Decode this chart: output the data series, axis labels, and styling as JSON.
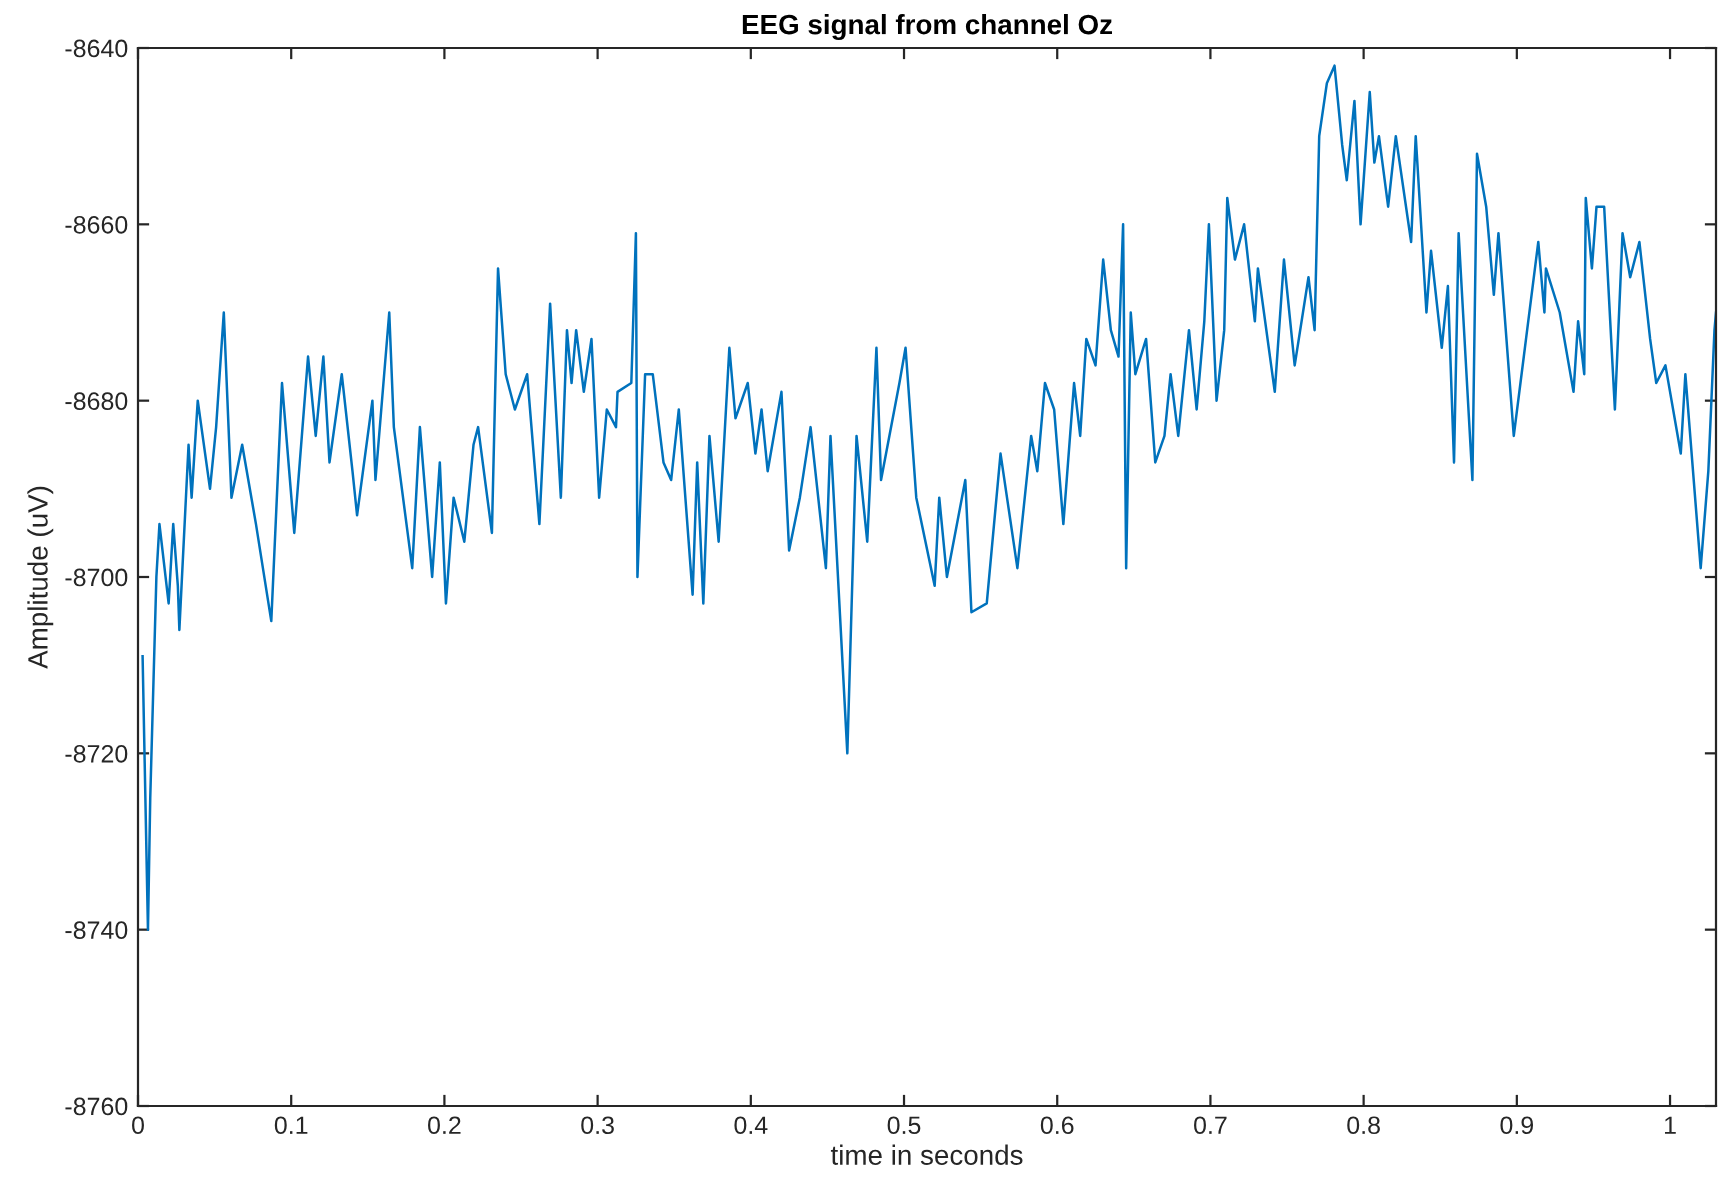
{
  "chart_data": {
    "type": "line",
    "title": "EEG signal from channel Oz",
    "xlabel": "time in seconds",
    "ylabel": "Amplitude (uV)",
    "xlim": [
      0,
      1.03
    ],
    "xticks": [
      0,
      0.1,
      0.2,
      0.3,
      0.4,
      0.5,
      0.6,
      0.7,
      0.8,
      0.9,
      1
    ],
    "ylim": [
      -8760,
      -8640
    ],
    "yticks": [
      -8760,
      -8740,
      -8720,
      -8700,
      -8680,
      -8660,
      -8640
    ],
    "grid": false,
    "marker": "none",
    "line_style": "solid",
    "series": [
      {
        "color": "#0072bd",
        "x": [
          0.003,
          0.0065,
          0.008,
          0.012,
          0.014,
          0.02,
          0.023,
          0.026,
          0.027,
          0.033,
          0.035,
          0.039,
          0.047,
          0.051,
          0.056,
          0.061,
          0.068,
          0.077,
          0.087,
          0.094,
          0.102,
          0.111,
          0.116,
          0.121,
          0.125,
          0.133,
          0.14,
          0.143,
          0.153,
          0.155,
          0.164,
          0.167,
          0.179,
          0.184,
          0.192,
          0.197,
          0.201,
          0.206,
          0.213,
          0.219,
          0.222,
          0.231,
          0.235,
          0.24,
          0.246,
          0.254,
          0.262,
          0.269,
          0.276,
          0.28,
          0.283,
          0.286,
          0.291,
          0.296,
          0.301,
          0.306,
          0.312,
          0.313,
          0.322,
          0.325,
          0.326,
          0.331,
          0.336,
          0.343,
          0.348,
          0.353,
          0.362,
          0.365,
          0.369,
          0.373,
          0.379,
          0.386,
          0.39,
          0.398,
          0.403,
          0.407,
          0.411,
          0.42,
          0.425,
          0.432,
          0.439,
          0.449,
          0.452,
          0.463,
          0.469,
          0.476,
          0.482,
          0.485,
          0.497,
          0.501,
          0.508,
          0.52,
          0.523,
          0.528,
          0.54,
          0.544,
          0.554,
          0.563,
          0.574,
          0.583,
          0.587,
          0.592,
          0.598,
          0.604,
          0.611,
          0.615,
          0.619,
          0.625,
          0.63,
          0.635,
          0.64,
          0.643,
          0.645,
          0.648,
          0.651,
          0.658,
          0.664,
          0.67,
          0.674,
          0.679,
          0.686,
          0.691,
          0.696,
          0.699,
          0.704,
          0.709,
          0.711,
          0.716,
          0.722,
          0.729,
          0.731,
          0.742,
          0.748,
          0.755,
          0.764,
          0.768,
          0.771,
          0.776,
          0.781,
          0.786,
          0.789,
          0.794,
          0.798,
          0.804,
          0.807,
          0.81,
          0.816,
          0.821,
          0.831,
          0.834,
          0.841,
          0.844,
          0.851,
          0.855,
          0.859,
          0.862,
          0.871,
          0.874,
          0.88,
          0.885,
          0.888,
          0.898,
          0.906,
          0.914,
          0.918,
          0.919,
          0.928,
          0.937,
          0.94,
          0.944,
          0.945,
          0.949,
          0.952,
          0.957,
          0.964,
          0.969,
          0.974,
          0.98,
          0.987,
          0.991,
          0.997,
          1.007,
          1.01,
          1.02,
          1.025,
          1.029,
          1.03
        ],
        "values": [
          -8709,
          -8740,
          -8725,
          -8700,
          -8694,
          -8703,
          -8694,
          -8701,
          -8706,
          -8685,
          -8691,
          -8680,
          -8690,
          -8683,
          -8670,
          -8691,
          -8685,
          -8694,
          -8705,
          -8678,
          -8695,
          -8675,
          -8684,
          -8675,
          -8687,
          -8677,
          -8688,
          -8693,
          -8680,
          -8689,
          -8670,
          -8683,
          -8699,
          -8683,
          -8700,
          -8687,
          -8703,
          -8691,
          -8696,
          -8685,
          -8683,
          -8695,
          -8665,
          -8677,
          -8681,
          -8677,
          -8694,
          -8669,
          -8691,
          -8672,
          -8678,
          -8672,
          -8679,
          -8673,
          -8691,
          -8681,
          -8683,
          -8679,
          -8678,
          -8661,
          -8700,
          -8677,
          -8677,
          -8687,
          -8689,
          -8681,
          -8702,
          -8687,
          -8703,
          -8684,
          -8696,
          -8674,
          -8682,
          -8678,
          -8686,
          -8681,
          -8688,
          -8679,
          -8697,
          -8691,
          -8683,
          -8699,
          -8684,
          -8720,
          -8684,
          -8696,
          -8674,
          -8689,
          -8678,
          -8674,
          -8691,
          -8701,
          -8691,
          -8700,
          -8689,
          -8704,
          -8703,
          -8686,
          -8699,
          -8684,
          -8688,
          -8678,
          -8681,
          -8694,
          -8678,
          -8684,
          -8673,
          -8676,
          -8664,
          -8672,
          -8675,
          -8660,
          -8699,
          -8670,
          -8677,
          -8673,
          -8687,
          -8684,
          -8677,
          -8684,
          -8672,
          -8681,
          -8671,
          -8660,
          -8680,
          -8672,
          -8657,
          -8664,
          -8660,
          -8671,
          -8665,
          -8679,
          -8664,
          -8676,
          -8666,
          -8672,
          -8650,
          -8644,
          -8642,
          -8651,
          -8655,
          -8646,
          -8660,
          -8645,
          -8653,
          -8650,
          -8658,
          -8650,
          -8662,
          -8650,
          -8670,
          -8663,
          -8674,
          -8667,
          -8687,
          -8661,
          -8689,
          -8652,
          -8658,
          -8668,
          -8661,
          -8684,
          -8673,
          -8662,
          -8670,
          -8665,
          -8670,
          -8679,
          -8671,
          -8677,
          -8657,
          -8665,
          -8658,
          -8658,
          -8681,
          -8661,
          -8666,
          -8662,
          -8673,
          -8678,
          -8676,
          -8686,
          -8677,
          -8699,
          -8688,
          -8672,
          -8670
        ]
      }
    ]
  }
}
